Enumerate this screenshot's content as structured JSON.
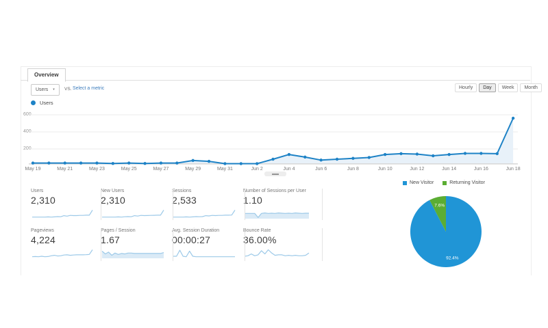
{
  "tab_bar": {
    "tabs": [
      {
        "label": "Overview",
        "active": true
      }
    ]
  },
  "controls": {
    "metric_selector": {
      "value": "Users",
      "caret": "▾"
    },
    "vs_label": "VS.",
    "compare_link": "Select a metric",
    "granularity_buttons": [
      {
        "label": "Hourly",
        "selected": false
      },
      {
        "label": "Day",
        "selected": true
      },
      {
        "label": "Week",
        "selected": false
      },
      {
        "label": "Month",
        "selected": false
      }
    ]
  },
  "chart_legend": {
    "label": "Users"
  },
  "colors": {
    "line_blue": "#1d82c6",
    "area_fill": "#e8f1f9",
    "spark_line": "#9cc9e8",
    "spark_fill": "#daeaf6",
    "grid": "#ebebeb",
    "baseline": "#d9d9d9",
    "pie_blue": "#2095d6",
    "pie_green": "#5bad33",
    "link_blue": "#3d7dbd"
  },
  "chart_data": [
    {
      "type": "line",
      "title": "Users over time",
      "ylabel": "Users",
      "x": [
        "May 19",
        "May 20",
        "May 21",
        "May 22",
        "May 23",
        "May 24",
        "May 25",
        "May 26",
        "May 27",
        "May 28",
        "May 29",
        "May 30",
        "May 31",
        "Jun 1",
        "Jun 2",
        "Jun 3",
        "Jun 4",
        "Jun 5",
        "Jun 6",
        "Jun 7",
        "Jun 8",
        "Jun 9",
        "Jun 10",
        "Jun 11",
        "Jun 12",
        "Jun 13",
        "Jun 14",
        "Jun 15",
        "Jun 16",
        "Jun 17",
        "Jun 18"
      ],
      "values": [
        35,
        35,
        35,
        35,
        35,
        30,
        35,
        30,
        35,
        35,
        65,
        55,
        10,
        20,
        10,
        80,
        135,
        105,
        70,
        80,
        90,
        100,
        135,
        145,
        140,
        120,
        135,
        148,
        148,
        145,
        560
      ],
      "x_tick_labels": [
        "May 19",
        "May 21",
        "May 23",
        "May 25",
        "May 27",
        "May 29",
        "May 31",
        "Jun 2",
        "Jun 4",
        "Jun 6",
        "Jun 8",
        "Jun 10",
        "Jun 12",
        "Jun 14",
        "Jun 16",
        "Jun 18"
      ],
      "yticks": [
        200,
        400,
        600
      ],
      "ylim": [
        0,
        620
      ],
      "grid": true,
      "legend_position": "top-left"
    },
    {
      "type": "sparklines",
      "series": [
        {
          "name": "Users",
          "display_value": "2,310",
          "filled": false,
          "values": [
            1,
            1,
            1,
            1,
            1,
            1.2,
            1,
            1.2,
            1.5,
            1.3,
            2.5,
            2,
            2.8,
            2.6,
            2.6,
            2.8,
            2.8,
            3,
            3,
            8.5
          ]
        },
        {
          "name": "New Users",
          "display_value": "2,310",
          "filled": false,
          "values": [
            1,
            1,
            1,
            1,
            1,
            1.2,
            1,
            1.3,
            1.5,
            1.3,
            2.5,
            2.1,
            2.8,
            2.6,
            2.7,
            2.8,
            2.9,
            3,
            3,
            8.5
          ]
        },
        {
          "name": "Sessions",
          "display_value": "2,533",
          "filled": false,
          "values": [
            1,
            1,
            1,
            1,
            1.2,
            1,
            1.2,
            1.5,
            1.3,
            1.5,
            2.5,
            2.2,
            2.8,
            2.6,
            2.8,
            2.8,
            3,
            3,
            3.2,
            8.5
          ]
        },
        {
          "name": "Number of Sessions per User",
          "display_value": "1.10",
          "filled": true,
          "values": [
            5,
            5,
            5,
            5,
            0.5,
            5,
            5.5,
            5,
            5.2,
            5,
            5.5,
            5.2,
            5,
            5.2,
            5,
            5.5,
            5.2,
            5,
            5.2,
            5.2
          ]
        },
        {
          "name": "Pageviews",
          "display_value": "4,224",
          "filled": false,
          "values": [
            1,
            1.2,
            1,
            1.5,
            1,
            1.2,
            2,
            2.5,
            1.8,
            2,
            2.8,
            3,
            2.5,
            2.8,
            3,
            3,
            3,
            3.2,
            3.5,
            8.5
          ]
        },
        {
          "name": "Pages / Session",
          "display_value": "1.67",
          "filled": true,
          "values": [
            7,
            4,
            6,
            2.5,
            5,
            3.5,
            4.5,
            4,
            5,
            5,
            4.5,
            4.5,
            4.5,
            4.5,
            4.5,
            4.5,
            4.5,
            4.5,
            4.5,
            5.5
          ]
        },
        {
          "name": "Avg. Session Duration",
          "display_value": "00:00:27",
          "filled": false,
          "values": [
            1.5,
            1.5,
            8,
            1.5,
            1,
            7,
            1.5,
            1,
            1,
            1,
            1,
            1,
            1,
            1,
            1,
            1,
            1,
            1,
            1,
            1
          ]
        },
        {
          "name": "Bounce Rate",
          "display_value": "36.00%",
          "filled": false,
          "values": [
            1.5,
            2,
            4,
            2,
            3,
            7.5,
            4,
            8.5,
            5,
            2.5,
            3,
            3,
            2,
            2.5,
            2,
            2.5,
            2,
            2,
            2.5,
            5
          ]
        }
      ]
    },
    {
      "type": "pie",
      "title": "New vs Returning Visitors",
      "slices": [
        {
          "label": "New Visitor",
          "value": 92.4,
          "display": "92.4%",
          "color": "#2095d6"
        },
        {
          "label": "Returning Visitor",
          "value": 7.6,
          "display": "7.6%",
          "color": "#5bad33"
        }
      ],
      "legend_position": "top"
    }
  ]
}
